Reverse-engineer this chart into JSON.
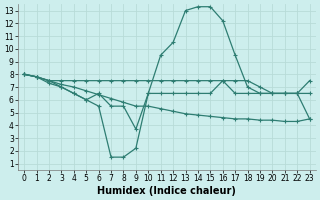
{
  "bg_color": "#cdeeed",
  "grid_color": "#b8dbd8",
  "line_color": "#2e7d72",
  "xlim": [
    -0.5,
    23.5
  ],
  "ylim": [
    0.5,
    13.5
  ],
  "xticks": [
    0,
    1,
    2,
    3,
    4,
    5,
    6,
    7,
    8,
    9,
    10,
    11,
    12,
    13,
    14,
    15,
    16,
    17,
    18,
    19,
    20,
    21,
    22,
    23
  ],
  "yticks": [
    1,
    2,
    3,
    4,
    5,
    6,
    7,
    8,
    9,
    10,
    11,
    12,
    13
  ],
  "xlabel": "Humidex (Indice chaleur)",
  "series": [
    {
      "x": [
        0,
        1,
        2,
        3,
        4,
        5,
        6,
        7,
        8,
        9,
        10,
        11,
        12,
        13,
        14,
        15,
        16,
        17,
        18,
        19,
        20,
        21,
        22,
        23
      ],
      "y": [
        8.0,
        7.8,
        7.5,
        7.5,
        7.5,
        7.5,
        7.5,
        7.5,
        7.5,
        7.5,
        7.5,
        7.5,
        7.5,
        7.5,
        7.5,
        7.5,
        7.5,
        7.5,
        7.5,
        7.0,
        6.5,
        6.5,
        6.5,
        7.5
      ]
    },
    {
      "x": [
        0,
        1,
        2,
        3,
        4,
        5,
        6,
        7,
        8,
        9,
        10,
        11,
        12,
        13,
        14,
        15,
        16,
        17,
        18,
        19,
        20,
        21,
        22,
        23
      ],
      "y": [
        8.0,
        7.8,
        7.5,
        7.2,
        7.0,
        6.7,
        6.4,
        6.1,
        5.8,
        5.5,
        5.5,
        5.3,
        5.1,
        4.9,
        4.8,
        4.7,
        4.6,
        4.5,
        4.5,
        4.4,
        4.4,
        4.3,
        4.3,
        4.5
      ]
    },
    {
      "x": [
        0,
        1,
        2,
        3,
        4,
        5,
        6,
        7,
        8,
        9,
        10,
        11,
        12,
        13,
        14,
        15,
        16,
        17,
        18,
        19,
        20,
        21,
        22,
        23
      ],
      "y": [
        8.0,
        7.8,
        7.5,
        7.0,
        6.5,
        6.0,
        5.5,
        1.5,
        1.5,
        2.2,
        6.5,
        9.5,
        10.5,
        13.0,
        13.3,
        13.3,
        12.2,
        9.5,
        7.0,
        6.5,
        6.5,
        6.5,
        6.5,
        4.5
      ]
    },
    {
      "x": [
        0,
        1,
        2,
        3,
        4,
        5,
        6,
        7,
        8,
        9,
        10,
        11,
        12,
        13,
        14,
        15,
        16,
        17,
        18,
        19,
        20,
        21,
        22,
        23
      ],
      "y": [
        8.0,
        7.8,
        7.3,
        7.0,
        6.5,
        6.0,
        6.5,
        5.5,
        5.5,
        3.7,
        6.5,
        6.5,
        6.5,
        6.5,
        6.5,
        6.5,
        7.5,
        6.5,
        6.5,
        6.5,
        6.5,
        6.5,
        6.5,
        6.5
      ]
    }
  ]
}
